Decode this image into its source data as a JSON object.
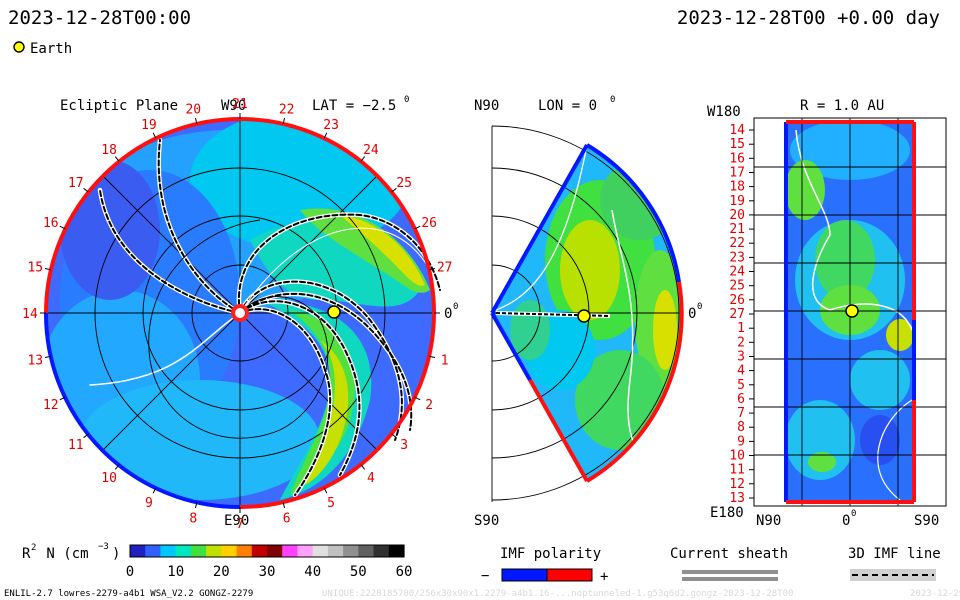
{
  "header": {
    "left_time": "2023-12-28T00:00",
    "right_time": "2023-12-28T00 +0.00 day",
    "earth_label": "Earth"
  },
  "ecliptic": {
    "title": "Ecliptic Plane",
    "axis_top": "W90",
    "axis_bottom": "E90",
    "axis_right": "0",
    "axis_right_sup": "0",
    "lat_label": "LAT = −2.5",
    "lat_sup": "0",
    "carrington_labels": [
      "19",
      "20",
      "21",
      "22",
      "23",
      "24",
      "25",
      "26",
      "27",
      "0",
      "1",
      "2",
      "3",
      "4",
      "5",
      "6",
      "7",
      "8",
      "9",
      "10",
      "11",
      "12",
      "13",
      "14",
      "15",
      "16",
      "17",
      "18"
    ]
  },
  "meridional": {
    "top_left": "N90",
    "bottom_left": "S90",
    "lon_label": "LON = 0",
    "lon_sup": "0",
    "axis_right": "0",
    "axis_right_sup": "0"
  },
  "radial": {
    "title": "R = 1.0 AU",
    "top_left": "W180",
    "bottom_left": "E180",
    "bottom_n": "N90",
    "bottom_zero": "0",
    "bottom_zero_sup": "0",
    "bottom_s": "S90",
    "row_labels": [
      "14",
      "15",
      "16",
      "17",
      "18",
      "19",
      "20",
      "21",
      "22",
      "23",
      "24",
      "25",
      "26",
      "27",
      "1",
      "2",
      "3",
      "4",
      "5",
      "6",
      "7",
      "8",
      "9",
      "10",
      "11",
      "12",
      "13"
    ]
  },
  "colorbar": {
    "label_r": "R",
    "label_sup": "2",
    "label_n": " N (cm",
    "label_exp": "−3",
    "label_close": ")",
    "ticks": [
      "0",
      "10",
      "20",
      "30",
      "40",
      "50",
      "60"
    ],
    "gradient": [
      "#2020c0",
      "#3060ff",
      "#00c8ff",
      "#00e8c0",
      "#40e040",
      "#c0e000",
      "#ffd000",
      "#ff8000",
      "#c00000",
      "#800000",
      "#ff40ff",
      "#ffa0ff",
      "#e0e0e0",
      "#c0c0c0",
      "#909090",
      "#606060",
      "#303030",
      "#000000"
    ]
  },
  "legend": {
    "imf_title": "IMF polarity",
    "imf_minus": "−",
    "imf_plus": "+",
    "sheath_title": "Current sheath",
    "line_title": "3D IMF line",
    "colors": {
      "negative": "#0018ff",
      "positive": "#ff0000",
      "sheath": "#909090"
    }
  },
  "footer": {
    "left": "ENLIL-2.7 lowres-2279-a4b1 WSA_V2.2 GONGZ-2279",
    "faint": "UNIQUE:2228185700/256x30x90x1.2279-a4b1.16-...noptunneled-1.g53q6d2.gongz-2023-12-28T00",
    "faint_right": "2023-12-29"
  },
  "chart_data": [
    {
      "type": "heatmap",
      "title": "Ecliptic Plane",
      "quantity": "R2 N (cm-3)",
      "color_range": [
        0,
        60
      ],
      "colorbar_ticks": [
        0,
        10,
        20,
        30,
        40,
        50,
        60
      ],
      "axis_labels": {
        "top": "W90",
        "bottom": "E90",
        "right": "0"
      },
      "latitude_deg": -2.5,
      "earth_position": {
        "angle_deg": 0,
        "radius_au": 1.0
      },
      "carrington_longitude_labels": [
        19,
        20,
        21,
        22,
        23,
        24,
        25,
        26,
        27,
        0,
        1,
        2,
        3,
        4,
        5,
        6,
        7,
        8,
        9,
        10,
        11,
        12,
        13,
        14,
        15,
        16,
        17,
        18
      ]
    },
    {
      "type": "heatmap",
      "title": "Meridional Plane",
      "quantity": "R2 N (cm-3)",
      "longitude_deg": 0,
      "axis_labels": {
        "top": "N90",
        "bottom": "S90",
        "right": "0"
      }
    },
    {
      "type": "heatmap",
      "title": "R = 1.0 AU",
      "quantity": "R2 N (cm-3)",
      "radius_au": 1.0,
      "x_labels": [
        "N90",
        "0",
        "S90"
      ],
      "y_labels": [
        "W180",
        "E180"
      ],
      "row_labels": [
        14,
        15,
        16,
        17,
        18,
        19,
        20,
        21,
        22,
        23,
        24,
        25,
        26,
        27,
        1,
        2,
        3,
        4,
        5,
        6,
        7,
        8,
        9,
        10,
        11,
        12,
        13
      ],
      "earth_row": "27"
    }
  ]
}
